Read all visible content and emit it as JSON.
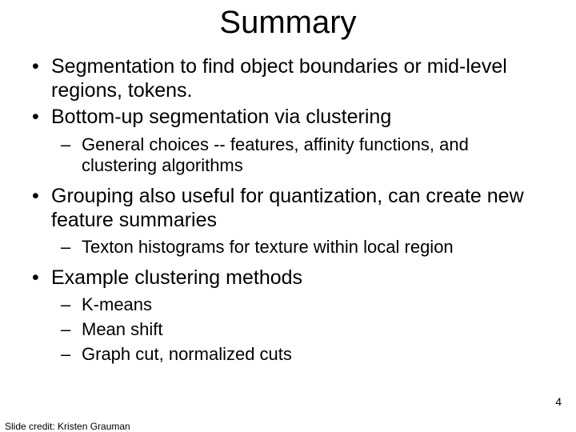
{
  "title": "Summary",
  "bullets": {
    "b0": "Segmentation to find object boundaries or mid-level regions, tokens.",
    "b1": " Bottom-up segmentation via clustering",
    "b1_sub0": "General choices -- features, affinity functions, and clustering algorithms",
    "b2": "Grouping also useful for quantization, can create new feature summaries",
    "b2_sub0": "Texton histograms for texture within local region",
    "b3": "Example clustering methods",
    "b3_sub0": "K-means",
    "b3_sub1": "Mean shift",
    "b3_sub2": "Graph cut, normalized cuts"
  },
  "footer": {
    "credit": "Slide credit: Kristen Grauman",
    "page": "4"
  },
  "style": {
    "background_color": "#ffffff",
    "text_color": "#000000",
    "title_fontsize": 40,
    "level1_fontsize": 25,
    "level2_fontsize": 22,
    "credit_fontsize": 12,
    "pagenum_fontsize": 14,
    "font_family": "Arial"
  }
}
